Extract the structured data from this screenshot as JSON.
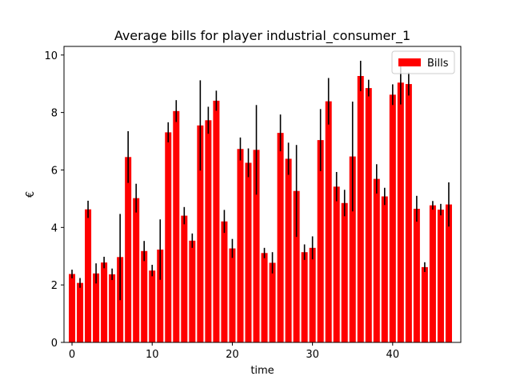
{
  "chart_data": {
    "type": "bar",
    "title": "Average bills for player industrial_consumer_1",
    "xlabel": "time",
    "ylabel": "€",
    "xlim": [
      -1,
      48.5
    ],
    "ylim": [
      0,
      10.3
    ],
    "xticks": [
      0,
      10,
      20,
      30,
      40
    ],
    "yticks": [
      0,
      2,
      4,
      6,
      8,
      10
    ],
    "grid": false,
    "legend_position": "top-right",
    "bar_color": "#ff0000",
    "error_color": "#000000",
    "series": [
      {
        "name": "Bills",
        "x": [
          0,
          1,
          2,
          3,
          4,
          5,
          6,
          7,
          8,
          9,
          10,
          11,
          12,
          13,
          14,
          15,
          16,
          17,
          18,
          19,
          20,
          21,
          22,
          23,
          24,
          25,
          26,
          27,
          28,
          29,
          30,
          31,
          32,
          33,
          34,
          35,
          36,
          37,
          38,
          39,
          40,
          41,
          42,
          43,
          44,
          45,
          46,
          47
        ],
        "values": [
          2.38,
          2.07,
          4.63,
          2.4,
          2.78,
          2.37,
          2.97,
          6.45,
          5.02,
          3.18,
          2.5,
          3.23,
          7.31,
          8.05,
          4.41,
          3.54,
          7.55,
          7.73,
          8.41,
          4.21,
          3.27,
          6.73,
          6.25,
          6.7,
          3.11,
          2.77,
          7.29,
          6.39,
          5.27,
          3.14,
          3.29,
          7.04,
          8.39,
          5.42,
          4.85,
          6.47,
          9.27,
          8.85,
          5.69,
          5.08,
          8.62,
          9.04,
          8.99,
          4.65,
          2.62,
          4.77,
          4.62,
          4.8
        ],
        "errors": [
          0.15,
          0.17,
          0.3,
          0.35,
          0.2,
          0.2,
          1.5,
          0.9,
          0.5,
          0.35,
          0.2,
          1.05,
          0.35,
          0.38,
          0.3,
          0.25,
          1.57,
          0.47,
          0.35,
          0.4,
          0.33,
          0.4,
          0.5,
          1.56,
          0.18,
          0.37,
          0.64,
          0.56,
          1.6,
          0.27,
          0.4,
          1.08,
          0.81,
          0.51,
          0.46,
          1.91,
          0.53,
          0.29,
          0.51,
          0.3,
          0.36,
          0.76,
          0.4,
          0.45,
          0.17,
          0.15,
          0.2,
          0.77
        ]
      }
    ]
  }
}
